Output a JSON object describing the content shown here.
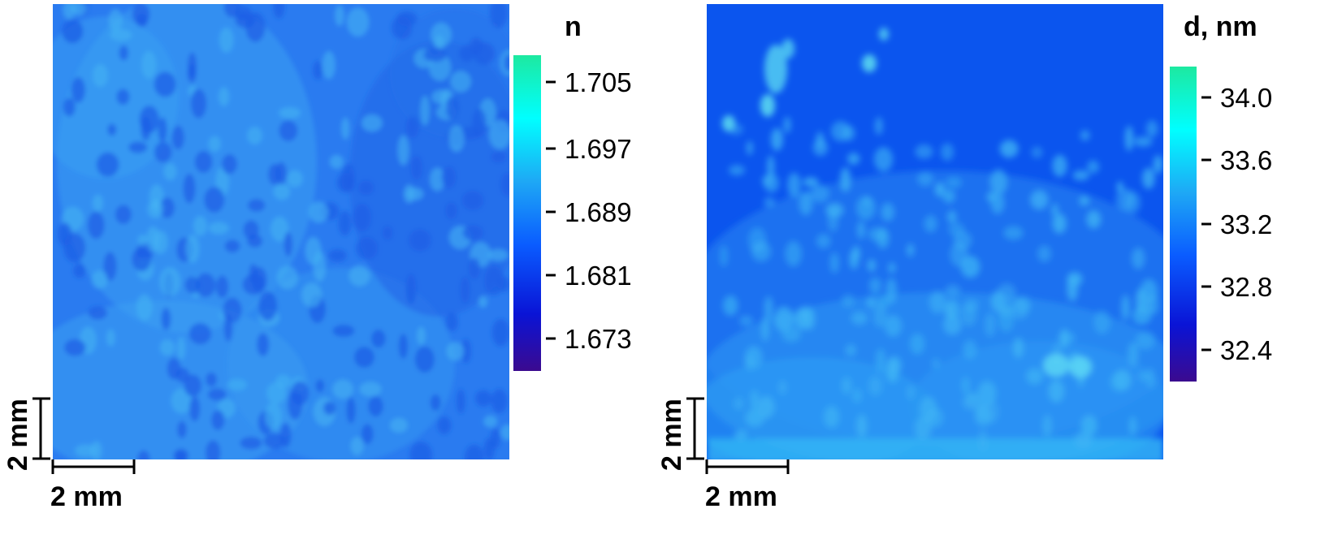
{
  "chart_data": [
    {
      "type": "heatmap",
      "panel": "left",
      "colorbar": {
        "title": "n",
        "ticks": [
          "1.705",
          "1.697",
          "1.689",
          "1.681",
          "1.673"
        ],
        "range": [
          1.669,
          1.709
        ]
      },
      "scale_bars": {
        "x_label": "2 mm",
        "y_label": "2 mm"
      },
      "approximate_mean": 1.688
    },
    {
      "type": "heatmap",
      "panel": "right",
      "colorbar": {
        "title": "d, nm",
        "ticks": [
          "34.0",
          "33.6",
          "33.2",
          "32.8",
          "32.4"
        ],
        "range": [
          32.2,
          34.2
        ]
      },
      "scale_bars": {
        "x_label": "2 mm",
        "y_label": "2 mm"
      },
      "approximate_mean": 33.0
    }
  ],
  "colors": {
    "colormap": [
      "#3b0a8f",
      "#0a14d6",
      "#0a5cff",
      "#1ea8f5",
      "#00ffff",
      "#1de9a0"
    ],
    "left_background": "#2a7bf0",
    "right_background": "#0b55ee"
  }
}
